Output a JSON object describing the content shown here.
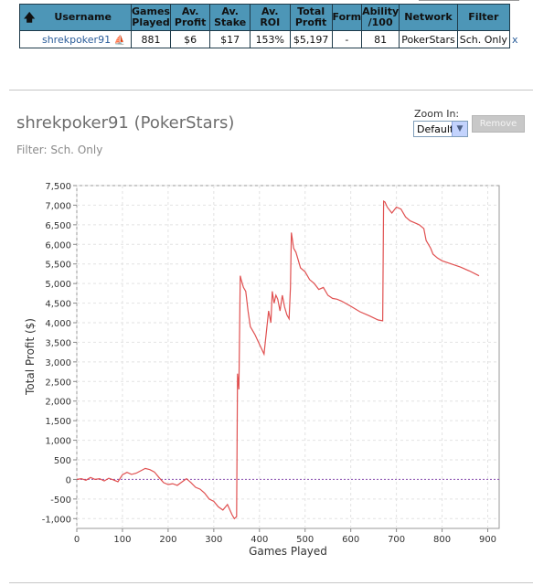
{
  "table": {
    "headers": [
      "Username",
      "Games\nPlayed",
      "Av.\nProfit",
      "Av.\nStake",
      "Av. ROI",
      "Total\nProfit",
      "Form",
      "Ability\n/100",
      "Network",
      "Filter"
    ],
    "row": {
      "username": "shrekpoker91",
      "games_played": "881",
      "av_profit": "$6",
      "av_stake": "$17",
      "av_roi": "153%",
      "total_profit": "$5,197",
      "form": "-",
      "ability": "81",
      "network": "PokerStars",
      "filter": "Sch. Only",
      "close": "x"
    },
    "sort_icon": "up-arrow-icon",
    "network_icon": "ship-icon"
  },
  "page": {
    "title": "shrekpoker91 (PokerStars)",
    "filter_label": "Filter: Sch. Only",
    "zoom_label": "Zoom In:",
    "zoom_value": "Default",
    "remove_label": "Remove"
  },
  "colors": {
    "header_bg": "#4d96b7",
    "line": "#e05050",
    "zero_line": "#8a4fb0"
  },
  "chart_data": {
    "type": "line",
    "xlabel": "Games Played",
    "ylabel": "Total Profit ($)",
    "xlim": [
      0,
      925
    ],
    "ylim": [
      -1250,
      7500
    ],
    "xticks": [
      0,
      100,
      200,
      300,
      400,
      500,
      600,
      700,
      800,
      900
    ],
    "yticks": [
      -1000,
      -500,
      0,
      500,
      1000,
      1500,
      2000,
      2500,
      3000,
      3500,
      4000,
      4500,
      5000,
      5500,
      6000,
      6500,
      7000,
      7500
    ],
    "ytick_labels": [
      "-1,000",
      "-500",
      "0",
      "500",
      "1,000",
      "1,500",
      "2,000",
      "2,500",
      "3,000",
      "3,500",
      "4,000",
      "4,500",
      "5,000",
      "5,500",
      "6,000",
      "6,500",
      "7,000",
      "7,500"
    ],
    "zero_line": true,
    "grid": true,
    "x": [
      0,
      10,
      20,
      30,
      40,
      50,
      60,
      70,
      80,
      90,
      100,
      110,
      120,
      130,
      140,
      150,
      160,
      170,
      180,
      190,
      200,
      210,
      220,
      240,
      250,
      260,
      270,
      280,
      290,
      300,
      310,
      320,
      330,
      340,
      345,
      350,
      352,
      355,
      358,
      360,
      365,
      370,
      375,
      380,
      385,
      390,
      400,
      410,
      420,
      425,
      428,
      432,
      436,
      440,
      445,
      450,
      455,
      460,
      465,
      468,
      470,
      475,
      480,
      490,
      500,
      510,
      520,
      530,
      540,
      550,
      560,
      570,
      580,
      600,
      620,
      640,
      660,
      670,
      672,
      675,
      680,
      690,
      700,
      710,
      720,
      730,
      740,
      750,
      760,
      765,
      770,
      775,
      780,
      790,
      800,
      820,
      840,
      860,
      881
    ],
    "y": [
      0,
      20,
      -20,
      50,
      0,
      20,
      -40,
      30,
      -10,
      -60,
      120,
      180,
      130,
      160,
      220,
      280,
      250,
      190,
      50,
      -80,
      -130,
      -110,
      -150,
      20,
      -80,
      -200,
      -250,
      -350,
      -500,
      -560,
      -700,
      -780,
      -640,
      -900,
      -1000,
      -950,
      2700,
      2300,
      5200,
      5100,
      4900,
      4800,
      4300,
      3900,
      3800,
      3700,
      3450,
      3200,
      4300,
      4000,
      4800,
      4500,
      4700,
      4600,
      4300,
      4700,
      4400,
      4200,
      4100,
      4900,
      6300,
      5900,
      5800,
      5400,
      5300,
      5100,
      5000,
      4850,
      4900,
      4700,
      4620,
      4600,
      4550,
      4420,
      4280,
      4180,
      4070,
      4050,
      7100,
      7080,
      6950,
      6800,
      6950,
      6900,
      6700,
      6600,
      6550,
      6500,
      6400,
      6100,
      6000,
      5900,
      5750,
      5650,
      5580,
      5500,
      5420,
      5320,
      5197
    ]
  }
}
